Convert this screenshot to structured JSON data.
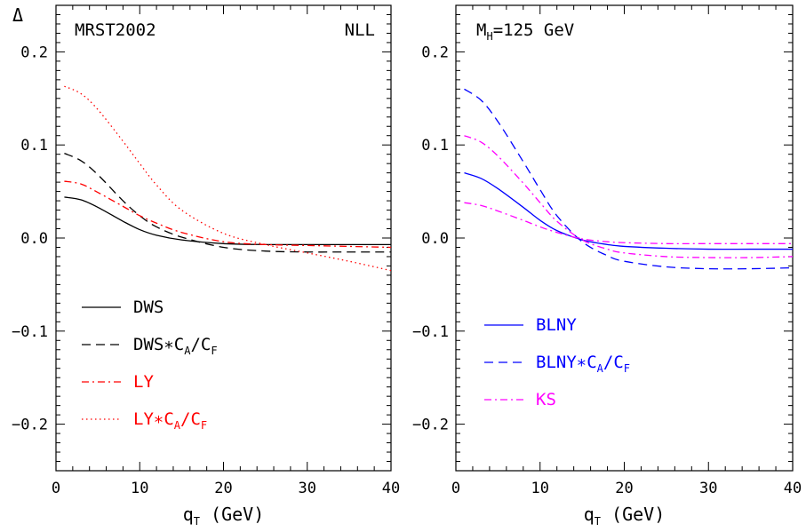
{
  "chart_data": [
    {
      "type": "line",
      "panel": "left",
      "ylabel": "Δ",
      "xlabel": "q",
      "xlabel_sub": "T",
      "xlabel_unit": "(GeV)",
      "xlim": [
        0,
        40
      ],
      "ylim": [
        -0.25,
        0.25
      ],
      "xticks": [
        "0",
        "10",
        "20",
        "30",
        "40"
      ],
      "yticks": [
        "0.2",
        "0.1",
        "0.0",
        "−0.1",
        "−0.2"
      ],
      "annotations": [
        {
          "text": "MRST2002",
          "position": "top-left",
          "color": "#000000"
        },
        {
          "text": "NLL",
          "position": "top-right",
          "color": "#000000"
        }
      ],
      "legend_position": "bottom-left",
      "series": [
        {
          "name": "DWS",
          "color": "#000000",
          "style": "solid",
          "x": [
            1,
            3,
            5,
            8,
            10,
            12,
            15,
            20,
            25,
            30,
            35,
            40
          ],
          "y": [
            0.044,
            0.041,
            0.033,
            0.018,
            0.009,
            0.003,
            -0.002,
            -0.006,
            -0.007,
            -0.007,
            -0.007,
            -0.007
          ]
        },
        {
          "name": "DWS∗C",
          "sub1": "A",
          "mid": "/C",
          "sub2": "F",
          "color": "#000000",
          "style": "dashed",
          "x": [
            1,
            3,
            5,
            8,
            10,
            12,
            15,
            20,
            25,
            30,
            35,
            40
          ],
          "y": [
            0.091,
            0.083,
            0.068,
            0.04,
            0.024,
            0.012,
            0.001,
            -0.01,
            -0.014,
            -0.015,
            -0.015,
            -0.015
          ]
        },
        {
          "name": "LY",
          "color": "#ff0000",
          "style": "dashdot",
          "x": [
            1,
            3,
            5,
            8,
            10,
            12,
            15,
            20,
            25,
            30,
            35,
            40
          ],
          "y": [
            0.061,
            0.058,
            0.049,
            0.034,
            0.024,
            0.016,
            0.006,
            -0.004,
            -0.007,
            -0.008,
            -0.009,
            -0.01
          ]
        },
        {
          "name": "LY∗C",
          "sub1": "A",
          "mid": "/C",
          "sub2": "F",
          "color": "#ff0000",
          "style": "dotted",
          "x": [
            1,
            3,
            5,
            8,
            10,
            12,
            15,
            20,
            25,
            30,
            35,
            40
          ],
          "y": [
            0.163,
            0.155,
            0.138,
            0.104,
            0.08,
            0.057,
            0.03,
            0.005,
            -0.007,
            -0.016,
            -0.025,
            -0.035
          ]
        }
      ]
    },
    {
      "type": "line",
      "panel": "right",
      "xlabel": "q",
      "xlabel_sub": "T",
      "xlabel_unit": "(GeV)",
      "xlim": [
        0,
        40
      ],
      "ylim": [
        -0.25,
        0.25
      ],
      "xticks": [
        "0",
        "10",
        "20",
        "30",
        "40"
      ],
      "yticks": [
        "0.2",
        "0.1",
        "0.0",
        "−0.1",
        "−0.2"
      ],
      "annotations": [
        {
          "text": "M",
          "sub": "H",
          "rest": "=125 GeV",
          "position": "top-left",
          "color": "#000000"
        }
      ],
      "legend_position": "bottom-left",
      "series": [
        {
          "name": "BLNY",
          "color": "#0000ff",
          "style": "solid",
          "x": [
            1,
            3,
            5,
            8,
            10,
            12,
            15,
            18,
            20,
            25,
            30,
            35,
            40
          ],
          "y": [
            0.07,
            0.064,
            0.053,
            0.033,
            0.019,
            0.008,
            -0.002,
            -0.007,
            -0.009,
            -0.011,
            -0.012,
            -0.012,
            -0.012
          ]
        },
        {
          "name": "BLNY∗C",
          "sub1": "A",
          "mid": "/C",
          "sub2": "F",
          "color": "#0000ff",
          "style": "dashed",
          "x": [
            1,
            3,
            5,
            8,
            10,
            12,
            15,
            18,
            20,
            25,
            30,
            35,
            40
          ],
          "y": [
            0.16,
            0.148,
            0.125,
            0.082,
            0.052,
            0.024,
            -0.004,
            -0.019,
            -0.025,
            -0.031,
            -0.033,
            -0.033,
            -0.032
          ]
        },
        {
          "name": "KS",
          "color": "#ff00ff",
          "style": "dashdot",
          "x": [
            1,
            3,
            5,
            8,
            10,
            12,
            15,
            18,
            20,
            25,
            30,
            35,
            40
          ],
          "y": [
            0.038,
            0.035,
            0.029,
            0.019,
            0.012,
            0.006,
            -0.001,
            -0.004,
            -0.005,
            -0.006,
            -0.006,
            -0.006,
            -0.006
          ]
        },
        {
          "name": "",
          "color": "#ff00ff",
          "style": "dashdot",
          "x": [
            1,
            3,
            5,
            8,
            10,
            12,
            15,
            18,
            20,
            25,
            30,
            35,
            40
          ],
          "y": [
            0.11,
            0.103,
            0.088,
            0.059,
            0.038,
            0.018,
            -0.002,
            -0.012,
            -0.016,
            -0.02,
            -0.021,
            -0.021,
            -0.02
          ]
        }
      ]
    }
  ]
}
